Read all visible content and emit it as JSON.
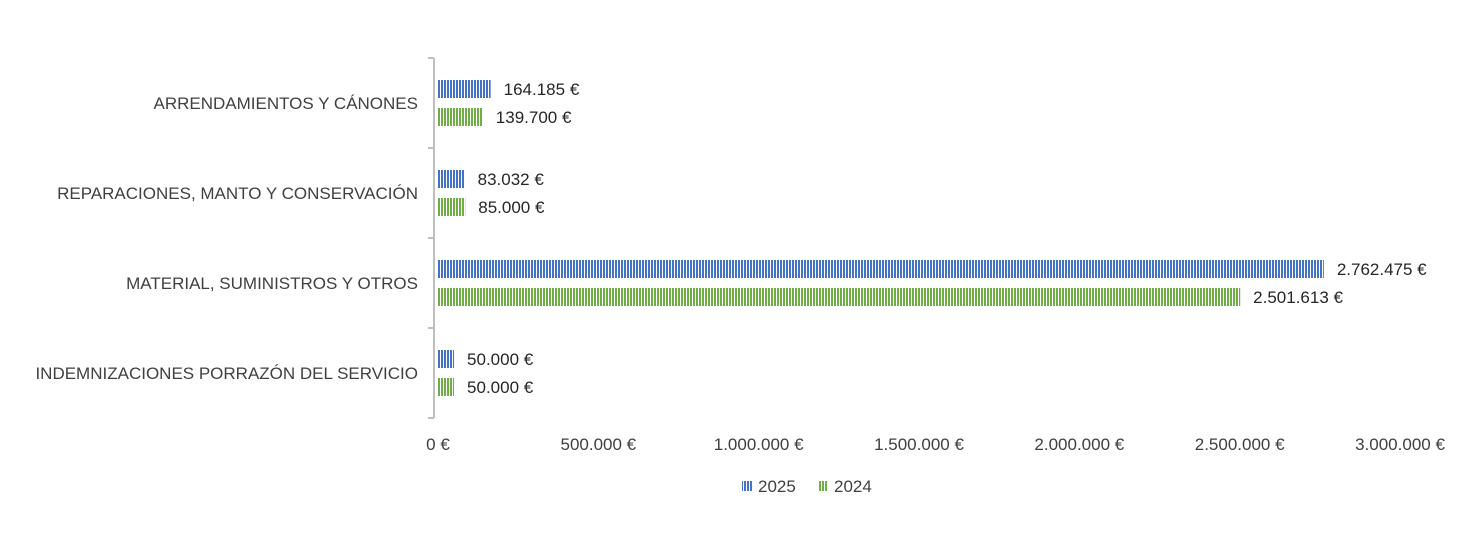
{
  "chart_data": {
    "type": "bar",
    "orientation": "horizontal",
    "categories": [
      "ARRENDAMIENTOS Y CÁNONES",
      "REPARACIONES, MANTO Y CONSERVACIÓN",
      "MATERIAL, SUMINISTROS Y OTROS",
      "INDEMNIZACIONES PORRAZÓN DEL SERVICIO"
    ],
    "series": [
      {
        "name": "2025",
        "color": "#4472C4",
        "values": [
          164185,
          83032,
          2762475,
          50000
        ],
        "labels": [
          "164.185 €",
          "83.032 €",
          "2.762.475 €",
          "50.000 €"
        ]
      },
      {
        "name": "2024",
        "color": "#70AD47",
        "values": [
          139700,
          85000,
          2501613,
          50000
        ],
        "labels": [
          "139.700 €",
          "85.000 €",
          "2.501.613 €",
          "50.000 €"
        ]
      }
    ],
    "xlim": [
      0,
      3000000
    ],
    "x_ticks": [
      0,
      500000,
      1000000,
      1500000,
      2000000,
      2500000,
      3000000
    ],
    "x_tick_labels": [
      "0 €",
      "500.000 €",
      "1.000.000 €",
      "1.500.000 €",
      "2.000.000 €",
      "2.500.000 €",
      "3.000.000 €"
    ],
    "grid": false,
    "legend_position": "bottom",
    "bar_pattern": "vertical-stripes"
  }
}
